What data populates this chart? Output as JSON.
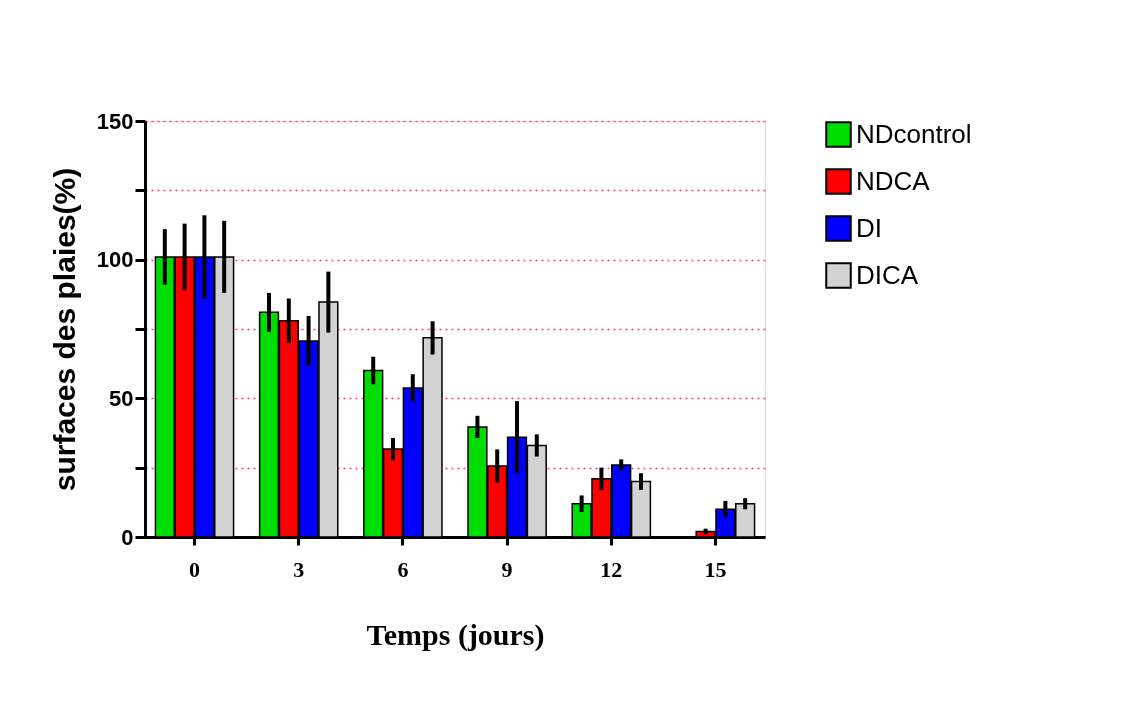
{
  "chart_data": {
    "type": "bar",
    "xlabel": "Temps (jours)",
    "ylabel": "surfaces des plaies(%)",
    "categories": [
      "0",
      "3",
      "6",
      "9",
      "12",
      "15"
    ],
    "series": [
      {
        "name": "NDcontrol",
        "color": "#00dd00",
        "values": [
          101,
          81,
          60,
          39.7,
          12,
          null
        ],
        "errors": [
          10,
          7,
          5,
          4,
          3,
          null
        ]
      },
      {
        "name": "NDCA",
        "color": "#ff0000",
        "values": [
          101,
          78,
          31.7,
          25.6,
          21,
          2
        ],
        "errors": [
          12,
          8,
          4,
          6,
          4,
          1
        ]
      },
      {
        "name": "DI",
        "color": "#0000ff",
        "values": [
          101,
          70.7,
          53.7,
          36,
          26,
          10
        ],
        "errors": [
          15,
          9,
          5,
          13,
          2,
          3
        ]
      },
      {
        "name": "DICA",
        "color": "#d3d3d3",
        "values": [
          101,
          84.7,
          71.8,
          33,
          20,
          12
        ],
        "errors": [
          13,
          11,
          6,
          4,
          3,
          2
        ]
      }
    ],
    "ylim": [
      0,
      150
    ],
    "yticks": [
      0,
      {
        "value": 25,
        "label": null
      },
      50,
      {
        "value": 75,
        "label": null
      },
      100,
      {
        "value": 125,
        "label": null
      },
      150
    ],
    "grid": "y",
    "legend": "top right"
  }
}
